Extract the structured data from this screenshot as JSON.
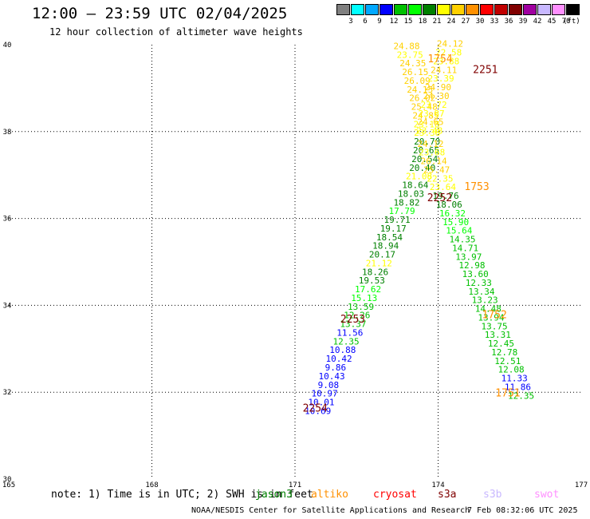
{
  "header": {
    "title": "12:00 – 23:59 UTC 02/04/2025",
    "subtitle": "12 hour collection of altimeter wave heights"
  },
  "legend": {
    "swatches": [
      {
        "color": "#808080",
        "label": "3"
      },
      {
        "color": "#00ffff",
        "label": "6"
      },
      {
        "color": "#00a8ff",
        "label": "9"
      },
      {
        "color": "#0000ff",
        "label": "12"
      },
      {
        "color": "#00c000",
        "label": "15"
      },
      {
        "color": "#00ff00",
        "label": "18"
      },
      {
        "color": "#008000",
        "label": "21"
      },
      {
        "color": "#ffff00",
        "label": "24"
      },
      {
        "color": "#ffd000",
        "label": "27"
      },
      {
        "color": "#ff9000",
        "label": "30"
      },
      {
        "color": "#ff0000",
        "label": "33"
      },
      {
        "color": "#c00000",
        "label": "36"
      },
      {
        "color": "#800000",
        "label": "39"
      },
      {
        "color": "#a000a0",
        "label": "42"
      },
      {
        "color": "#c8b8ff",
        "label": "45"
      },
      {
        "color": "#ff90ff",
        "label": "70"
      },
      {
        "color": "#000000",
        "label": ""
      }
    ],
    "unit": "(ft)"
  },
  "footer": {
    "note": "note: 1) Time is in UTC; 2) SWH is in feet",
    "satellites": [
      {
        "name": "jason3",
        "color": "#008000"
      },
      {
        "name": "altiko",
        "color": "#ff9000"
      },
      {
        "name": "cryosat",
        "color": "#ff0000"
      },
      {
        "name": "s3a",
        "color": "#800000"
      },
      {
        "name": "s3b",
        "color": "#c8b8ff"
      },
      {
        "name": "swot",
        "color": "#ff90ff"
      }
    ],
    "credit": "NOAA/NESDIS Center for Satellite Applications and Research",
    "timestamp": "7 Feb 08:32:06 UTC 2025"
  },
  "chart_data": {
    "type": "scatter",
    "xlim": [
      165,
      177
    ],
    "ylim": [
      30,
      40
    ],
    "xticks": [
      165,
      168,
      171,
      174,
      177
    ],
    "yticks": [
      30,
      32,
      34,
      36,
      38,
      40
    ],
    "grid": true,
    "tracks": [
      {
        "name": "track-a",
        "points": [
          {
            "x": 173.34,
            "y": 39.9,
            "v": "24.88"
          },
          {
            "x": 173.41,
            "y": 39.7,
            "v": "23.75"
          },
          {
            "x": 173.47,
            "y": 39.5,
            "v": "24.35"
          },
          {
            "x": 173.52,
            "y": 39.3,
            "v": "26.15"
          },
          {
            "x": 173.56,
            "y": 39.1,
            "v": "26.09"
          },
          {
            "x": 173.62,
            "y": 38.9,
            "v": "24.15"
          },
          {
            "x": 173.67,
            "y": 38.7,
            "v": "26.02"
          },
          {
            "x": 173.71,
            "y": 38.5,
            "v": "25.48"
          },
          {
            "x": 173.74,
            "y": 38.3,
            "v": "24.85"
          },
          {
            "x": 173.76,
            "y": 38.1,
            "v": "23.18"
          },
          {
            "x": 173.77,
            "y": 37.9,
            "v": "23.38"
          },
          {
            "x": 173.77,
            "y": 37.7,
            "v": "20.70"
          },
          {
            "x": 173.75,
            "y": 37.5,
            "v": "20.65"
          },
          {
            "x": 173.72,
            "y": 37.3,
            "v": "20.54"
          },
          {
            "x": 173.67,
            "y": 37.1,
            "v": "20.40"
          },
          {
            "x": 173.6,
            "y": 36.9,
            "v": "21.08"
          },
          {
            "x": 173.52,
            "y": 36.7,
            "v": "18.64"
          },
          {
            "x": 173.43,
            "y": 36.5,
            "v": "18.03"
          },
          {
            "x": 173.34,
            "y": 36.3,
            "v": "18.82"
          },
          {
            "x": 173.24,
            "y": 36.1,
            "v": "17.79"
          },
          {
            "x": 173.14,
            "y": 35.9,
            "v": "19.71"
          },
          {
            "x": 173.06,
            "y": 35.7,
            "v": "19.17"
          },
          {
            "x": 172.98,
            "y": 35.5,
            "v": "18.54"
          },
          {
            "x": 172.9,
            "y": 35.3,
            "v": "18.94"
          },
          {
            "x": 172.83,
            "y": 35.1,
            "v": "20.17"
          },
          {
            "x": 172.76,
            "y": 34.9,
            "v": "21.12"
          },
          {
            "x": 172.68,
            "y": 34.7,
            "v": "18.26"
          },
          {
            "x": 172.61,
            "y": 34.5,
            "v": "19.53"
          },
          {
            "x": 172.53,
            "y": 34.3,
            "v": "17.62"
          },
          {
            "x": 172.45,
            "y": 34.1,
            "v": "15.13"
          },
          {
            "x": 172.38,
            "y": 33.9,
            "v": "13.59"
          },
          {
            "x": 172.3,
            "y": 33.7,
            "v": "12.26"
          },
          {
            "x": 172.22,
            "y": 33.5,
            "v": "13.37"
          },
          {
            "x": 172.15,
            "y": 33.3,
            "v": "11.56"
          },
          {
            "x": 172.07,
            "y": 33.1,
            "v": "12.35"
          },
          {
            "x": 172.0,
            "y": 32.9,
            "v": "10.88"
          },
          {
            "x": 171.92,
            "y": 32.7,
            "v": "10.42"
          },
          {
            "x": 171.85,
            "y": 32.5,
            "v": "9.86"
          },
          {
            "x": 171.77,
            "y": 32.3,
            "v": "10.43"
          },
          {
            "x": 171.7,
            "y": 32.1,
            "v": "9.08"
          },
          {
            "x": 171.62,
            "y": 31.9,
            "v": "10.97"
          },
          {
            "x": 171.55,
            "y": 31.7,
            "v": "10.01"
          },
          {
            "x": 171.48,
            "y": 31.5,
            "v": "10.69"
          }
        ]
      },
      {
        "name": "track-b",
        "points": [
          {
            "x": 174.25,
            "y": 39.95,
            "v": "24.12"
          },
          {
            "x": 174.22,
            "y": 39.75,
            "v": "22.58"
          },
          {
            "x": 174.17,
            "y": 39.55,
            "v": "23.88"
          },
          {
            "x": 174.12,
            "y": 39.35,
            "v": "24.11"
          },
          {
            "x": 174.06,
            "y": 39.15,
            "v": "23.39"
          },
          {
            "x": 174.0,
            "y": 38.95,
            "v": "24.90"
          },
          {
            "x": 173.96,
            "y": 38.75,
            "v": "24.30"
          },
          {
            "x": 173.91,
            "y": 38.55,
            "v": "23.72"
          },
          {
            "x": 173.86,
            "y": 38.35,
            "v": "23.87"
          },
          {
            "x": 173.84,
            "y": 38.15,
            "v": "24.65"
          },
          {
            "x": 173.82,
            "y": 37.95,
            "v": "23.48"
          },
          {
            "x": 173.84,
            "y": 37.65,
            "v": "24.12"
          },
          {
            "x": 173.87,
            "y": 37.45,
            "v": "23.68"
          },
          {
            "x": 173.91,
            "y": 37.25,
            "v": "26.14"
          },
          {
            "x": 173.97,
            "y": 37.05,
            "v": "25.47"
          },
          {
            "x": 174.04,
            "y": 36.85,
            "v": "22.35"
          },
          {
            "x": 174.1,
            "y": 36.65,
            "v": "23.64"
          },
          {
            "x": 174.16,
            "y": 36.45,
            "v": "19.76"
          },
          {
            "x": 174.23,
            "y": 36.25,
            "v": "18.06"
          },
          {
            "x": 174.3,
            "y": 36.05,
            "v": "16.32"
          },
          {
            "x": 174.37,
            "y": 35.85,
            "v": "15.90"
          },
          {
            "x": 174.44,
            "y": 35.65,
            "v": "15.64"
          },
          {
            "x": 174.51,
            "y": 35.45,
            "v": "14.35"
          },
          {
            "x": 174.57,
            "y": 35.25,
            "v": "14.71"
          },
          {
            "x": 174.64,
            "y": 35.05,
            "v": "13.97"
          },
          {
            "x": 174.71,
            "y": 34.85,
            "v": "12.98"
          },
          {
            "x": 174.78,
            "y": 34.65,
            "v": "13.60"
          },
          {
            "x": 174.85,
            "y": 34.45,
            "v": "12.33"
          },
          {
            "x": 174.91,
            "y": 34.25,
            "v": "13.34"
          },
          {
            "x": 174.98,
            "y": 34.05,
            "v": "13.23"
          },
          {
            "x": 175.05,
            "y": 33.85,
            "v": "14.48"
          },
          {
            "x": 175.11,
            "y": 33.65,
            "v": "13.94"
          },
          {
            "x": 175.18,
            "y": 33.45,
            "v": "13.75"
          },
          {
            "x": 175.25,
            "y": 33.25,
            "v": "13.31"
          },
          {
            "x": 175.32,
            "y": 33.05,
            "v": "12.45"
          },
          {
            "x": 175.39,
            "y": 32.85,
            "v": "12.78"
          },
          {
            "x": 175.46,
            "y": 32.65,
            "v": "12.51"
          },
          {
            "x": 175.53,
            "y": 32.45,
            "v": "12.08"
          },
          {
            "x": 175.6,
            "y": 32.25,
            "v": "11.33"
          },
          {
            "x": 175.67,
            "y": 32.05,
            "v": "11.86"
          },
          {
            "x": 175.74,
            "y": 31.85,
            "v": "12.35"
          }
        ]
      }
    ],
    "time_labels": [
      {
        "x": 173.78,
        "y": 39.6,
        "text": "1754",
        "color": "#ff9000"
      },
      {
        "x": 174.73,
        "y": 39.35,
        "text": "2251",
        "color": "#800000"
      },
      {
        "x": 174.55,
        "y": 36.65,
        "text": "1753",
        "color": "#ff9000"
      },
      {
        "x": 173.77,
        "y": 36.4,
        "text": "2252",
        "color": "#800000"
      },
      {
        "x": 174.92,
        "y": 33.7,
        "text": "1752",
        "color": "#ff9000"
      },
      {
        "x": 171.95,
        "y": 33.6,
        "text": "2253",
        "color": "#800000"
      },
      {
        "x": 175.2,
        "y": 31.9,
        "text": "1751",
        "color": "#ff9000"
      },
      {
        "x": 171.16,
        "y": 31.55,
        "text": "2254",
        "color": "#800000"
      }
    ]
  }
}
